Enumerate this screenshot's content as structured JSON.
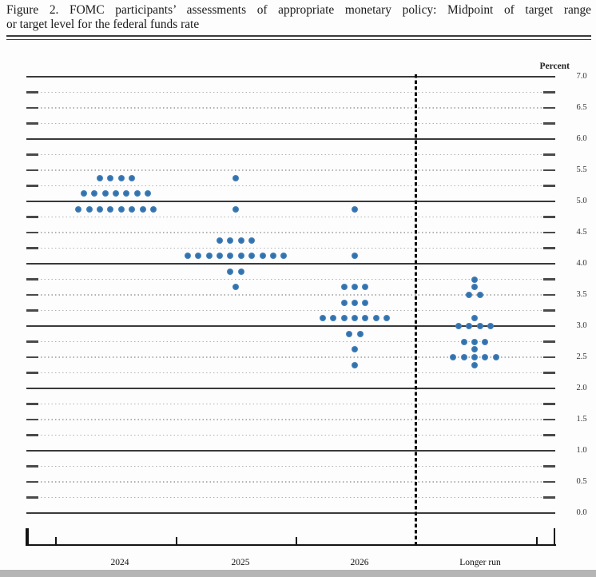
{
  "header": {
    "title_line1": "Figure 2.  FOMC participants’ assessments of appropriate monetary policy:  Midpoint of target range",
    "title_line2": "or target level for the federal funds rate"
  },
  "chart_data": {
    "type": "scatter",
    "subtype": "fomc-dot-plot",
    "title": "Figure 2. FOMC participants’ assessments of appropriate monetary policy: Midpoint of target range or target level for the federal funds rate",
    "ylabel": "Percent",
    "ylim": [
      0.0,
      7.0
    ],
    "gridline_step": 0.25,
    "grid_style": "solid line at each integer percent, dotted line at each quarter-percent with short solid tick segments at both ends",
    "legend": "none",
    "separator": "vertical dashed line between 2026 and Longer run",
    "y_ticks": [
      {
        "value": 7.0,
        "label": "7.0"
      },
      {
        "value": 6.5,
        "label": "6.5"
      },
      {
        "value": 6.0,
        "label": "6.0"
      },
      {
        "value": 5.5,
        "label": "5.5"
      },
      {
        "value": 5.0,
        "label": "5.0"
      },
      {
        "value": 4.5,
        "label": "4.5"
      },
      {
        "value": 4.0,
        "label": "4.0"
      },
      {
        "value": 3.5,
        "label": "3.5"
      },
      {
        "value": 3.0,
        "label": "3.0"
      },
      {
        "value": 2.5,
        "label": "2.5"
      },
      {
        "value": 2.0,
        "label": "2.0"
      },
      {
        "value": 1.5,
        "label": "1.5"
      },
      {
        "value": 1.0,
        "label": "1.0"
      },
      {
        "value": 0.5,
        "label": "0.5"
      },
      {
        "value": 0.0,
        "label": "0.0"
      }
    ],
    "categories": [
      "2024",
      "2025",
      "2026",
      "Longer run"
    ],
    "series": [
      {
        "category": "2024",
        "dots": [
          {
            "rate": 5.375,
            "count": 4
          },
          {
            "rate": 5.125,
            "count": 7
          },
          {
            "rate": 4.875,
            "count": 8
          }
        ]
      },
      {
        "category": "2025",
        "dots": [
          {
            "rate": 5.375,
            "count": 1
          },
          {
            "rate": 4.875,
            "count": 1
          },
          {
            "rate": 4.375,
            "count": 4
          },
          {
            "rate": 4.125,
            "count": 10
          },
          {
            "rate": 3.875,
            "count": 2
          },
          {
            "rate": 3.625,
            "count": 1
          }
        ]
      },
      {
        "category": "2026",
        "dots": [
          {
            "rate": 4.875,
            "count": 1
          },
          {
            "rate": 4.125,
            "count": 1
          },
          {
            "rate": 3.625,
            "count": 3
          },
          {
            "rate": 3.375,
            "count": 3
          },
          {
            "rate": 3.125,
            "count": 7
          },
          {
            "rate": 2.875,
            "count": 2
          },
          {
            "rate": 2.625,
            "count": 1
          },
          {
            "rate": 2.375,
            "count": 1
          }
        ]
      },
      {
        "category": "Longer run",
        "dots": [
          {
            "rate": 3.75,
            "count": 1
          },
          {
            "rate": 3.625,
            "count": 1
          },
          {
            "rate": 3.5,
            "count": 2
          },
          {
            "rate": 3.125,
            "count": 1
          },
          {
            "rate": 3.0,
            "count": 4
          },
          {
            "rate": 2.75,
            "count": 3
          },
          {
            "rate": 2.625,
            "count": 1
          },
          {
            "rate": 2.5,
            "count": 5
          },
          {
            "rate": 2.375,
            "count": 1
          }
        ]
      }
    ],
    "dot_color": "#3a79b4",
    "participants_per_column": 19
  }
}
